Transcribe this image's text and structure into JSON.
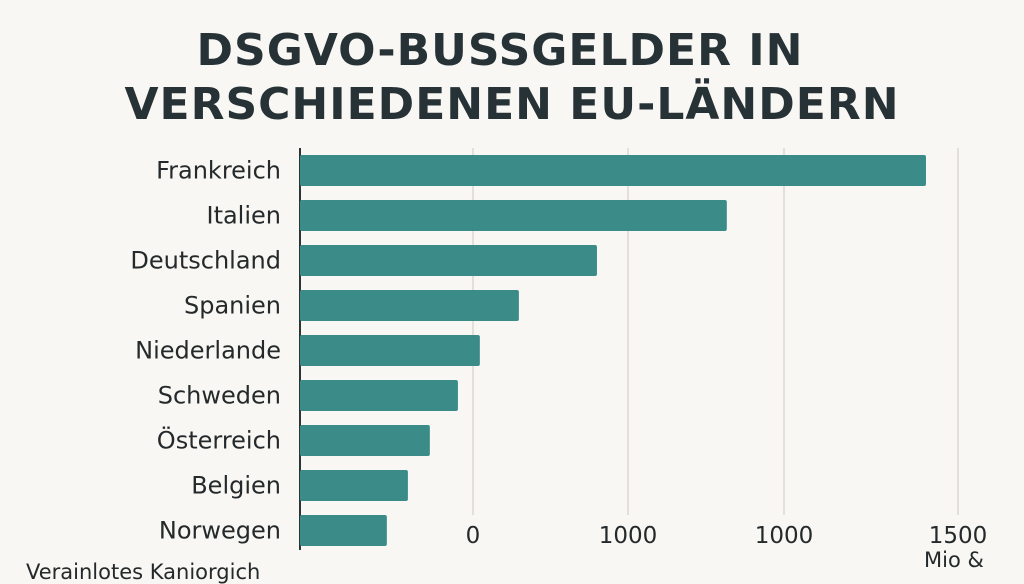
{
  "chart_data": {
    "type": "bar",
    "orientation": "horizontal",
    "title_lines": [
      "DSGVO-BUSSGELDER IN",
      "VERSCHIEDENEN EU-LÄNDERN"
    ],
    "categories": [
      "Frankreich",
      "Italien",
      "Deutschland",
      "Spanien",
      "Niederlande",
      "Schweden",
      "Österreich",
      "Belgien",
      "Norwegen"
    ],
    "values": [
      1427,
      973,
      677,
      499,
      410,
      360,
      296,
      246,
      198
    ],
    "x_tick_labels": [
      "0",
      "1000",
      "1000",
      "1500"
    ],
    "xlim": [
      0,
      1500
    ],
    "xlabel": "Mio &",
    "footer": "Verainlotes Kaniorgich",
    "grid": "vertical",
    "bar_color": "#3b8c88",
    "background": "#f9f7f3"
  }
}
